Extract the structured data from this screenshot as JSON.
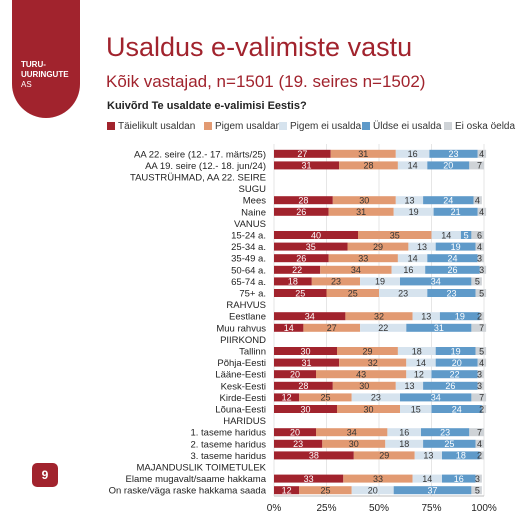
{
  "logo": {
    "line1": "TURU-",
    "line2": "UURINGUTE",
    "line3": "AS"
  },
  "page_number": "9",
  "title": "Usaldus e-valimiste vastu",
  "subtitle": "Kõik vastajad, n=1501 (19. seires n=1502)",
  "question": "Kuivõrd Te usaldate e-valimisi Eestis?",
  "colors": [
    "#a1232d",
    "#e29a72",
    "#d6e3ee",
    "#5f9ac9",
    "#cfd3d7"
  ],
  "chart_data": {
    "type": "bar",
    "orientation": "horizontal",
    "stacked": true,
    "title": "Kuivõrd Te usaldate e-valimisi Eestis?",
    "legend_position": "top",
    "xlim": [
      0,
      100
    ],
    "x_ticks": [
      "0%",
      "25%",
      "50%",
      "75%",
      "100%"
    ],
    "series": [
      {
        "name": "Täielikult usaldan",
        "color": "#a1232d"
      },
      {
        "name": "Pigem usaldan",
        "color": "#e29a72"
      },
      {
        "name": "Pigem ei usalda",
        "color": "#d6e3ee"
      },
      {
        "name": "Üldse ei usalda",
        "color": "#5f9ac9"
      },
      {
        "name": "Ei oska öelda",
        "color": "#cfd3d7"
      }
    ],
    "rows": [
      {
        "label": "AA 22. seire (12.- 17. märts/25)",
        "values": [
          27,
          31,
          16,
          23,
          4
        ]
      },
      {
        "label": "AA 19. seire (12.- 18. jun/24)",
        "values": [
          31,
          28,
          14,
          20,
          7
        ]
      },
      {
        "label": "TAUSTRÜHMAD, AA 22. SEIRE",
        "values": null
      },
      {
        "label": "SUGU",
        "values": null
      },
      {
        "label": "Mees",
        "values": [
          28,
          30,
          13,
          24,
          4
        ]
      },
      {
        "label": "Naine",
        "values": [
          26,
          31,
          19,
          21,
          4
        ]
      },
      {
        "label": "VANUS",
        "values": null
      },
      {
        "label": "15-24 a.",
        "values": [
          40,
          35,
          14,
          5,
          6
        ]
      },
      {
        "label": "25-34 a.",
        "values": [
          35,
          29,
          13,
          19,
          4
        ]
      },
      {
        "label": "35-49 a.",
        "values": [
          26,
          33,
          14,
          24,
          3
        ]
      },
      {
        "label": "50-64 a.",
        "values": [
          22,
          34,
          16,
          26,
          3
        ]
      },
      {
        "label": "65-74 a.",
        "values": [
          18,
          23,
          19,
          34,
          5
        ]
      },
      {
        "label": "75+ a.",
        "values": [
          25,
          25,
          23,
          23,
          5
        ]
      },
      {
        "label": "RAHVUS",
        "values": null
      },
      {
        "label": "Eestlane",
        "values": [
          34,
          32,
          13,
          19,
          2
        ]
      },
      {
        "label": "Muu rahvus",
        "values": [
          14,
          27,
          22,
          31,
          7
        ]
      },
      {
        "label": "PIIRKOND",
        "values": null
      },
      {
        "label": "Tallinn",
        "values": [
          30,
          29,
          18,
          19,
          5
        ]
      },
      {
        "label": "Põhja-Eesti",
        "values": [
          31,
          32,
          14,
          20,
          4
        ]
      },
      {
        "label": "Lääne-Eesti",
        "values": [
          20,
          43,
          12,
          22,
          3
        ]
      },
      {
        "label": "Kesk-Eesti",
        "values": [
          28,
          30,
          13,
          26,
          3
        ]
      },
      {
        "label": "Kirde-Eesti",
        "values": [
          12,
          25,
          23,
          34,
          7
        ]
      },
      {
        "label": "Lõuna-Eesti",
        "values": [
          30,
          30,
          15,
          24,
          2
        ]
      },
      {
        "label": "HARIDUS",
        "values": null
      },
      {
        "label": "1. taseme haridus",
        "values": [
          20,
          34,
          16,
          23,
          7
        ]
      },
      {
        "label": "2. taseme haridus",
        "values": [
          23,
          30,
          18,
          25,
          4
        ]
      },
      {
        "label": "3. taseme haridus",
        "values": [
          38,
          29,
          13,
          18,
          2
        ]
      },
      {
        "label": "MAJANDUSLIK TOIMETULEK",
        "values": null
      },
      {
        "label": "Elame mugavalt/saame hakkama",
        "values": [
          33,
          33,
          14,
          16,
          3
        ]
      },
      {
        "label": "On raske/väga raske hakkama saada",
        "values": [
          12,
          25,
          20,
          37,
          5
        ]
      }
    ]
  }
}
